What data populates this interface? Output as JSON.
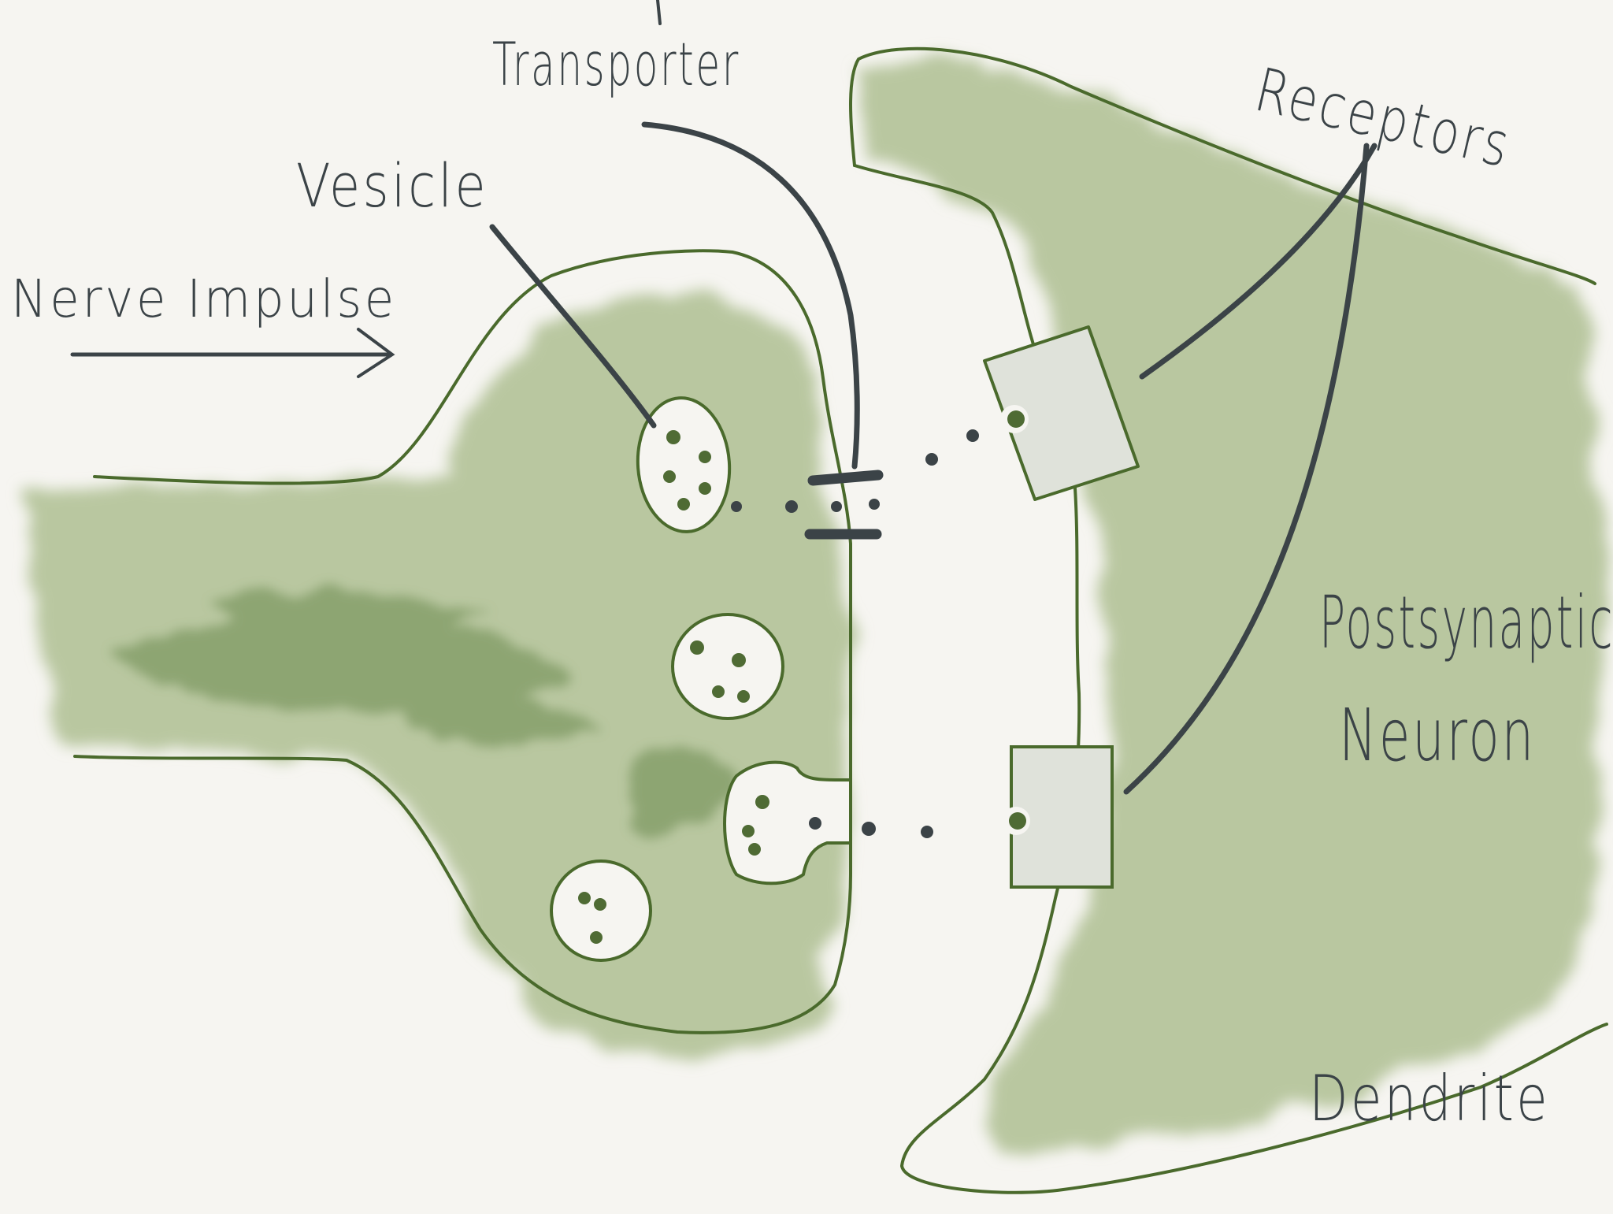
{
  "labels": {
    "nerve_impulse": "Nerve Impulse",
    "vesicle": "Vesicle",
    "transporter": "Transporter",
    "receptors": "Receptors",
    "postsynaptic_line1": "Postsynaptic",
    "postsynaptic_line2": "Neuron",
    "dendrite": "Dendrite"
  },
  "colors": {
    "paper": "#f6f5f1",
    "wash_light": "#b9c7a0",
    "wash_dark": "#7f9a63",
    "outline_green": "#4a6a2c",
    "ink_dark": "#3b4347",
    "receptor_fill": "#dfe2da",
    "dot_green": "#4f6b34"
  },
  "icons": {
    "arrow": "right-arrow-icon"
  }
}
